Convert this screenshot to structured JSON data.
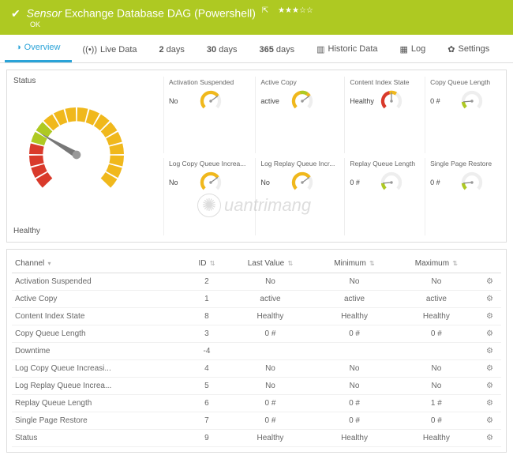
{
  "header": {
    "prefix": "Sensor",
    "title": "Exchange Database DAG (Powershell)",
    "popout_icon": "⇱",
    "stars": "★★★☆☆",
    "status": "OK",
    "bg_color": "#aec922"
  },
  "tabs": [
    {
      "icon": "◑",
      "label": "Overview",
      "active": true
    },
    {
      "icon": "((•))",
      "label": "Live Data"
    },
    {
      "icon": "",
      "label": "2 days",
      "bold_num": "2"
    },
    {
      "icon": "",
      "label": "30 days",
      "bold_num": "30"
    },
    {
      "icon": "",
      "label": "365 days",
      "bold_num": "365"
    },
    {
      "icon": "▥",
      "label": "Historic Data"
    },
    {
      "icon": "▦",
      "label": "Log"
    },
    {
      "icon": "✿",
      "label": "Settings"
    }
  ],
  "status_panel": {
    "title": "Status",
    "bottom": "Healthy",
    "main_gauge": {
      "segments_colors": [
        "#d93a2b",
        "#d93a2b",
        "#d93a2b",
        "#d93a2b",
        "#aec922",
        "#aec922",
        "#f0b81c",
        "#f0b81c",
        "#f0b81c",
        "#f0b81c",
        "#f0b81c",
        "#f0b81c",
        "#f0b81c",
        "#f0b81c",
        "#f0b81c",
        "#f0b81c",
        "#f0b81c",
        "#f0b81c"
      ],
      "needle_value": 0.28,
      "needle_color": "#777"
    },
    "mini": [
      {
        "title": "Activation Suspended",
        "value": "No",
        "gauge_color": "#f0b81c",
        "fill": 0.7
      },
      {
        "title": "Active Copy",
        "value": "active",
        "gauge_color": "#f0b81c",
        "fill": 0.7,
        "accent": "#aec922"
      },
      {
        "title": "Content Index State",
        "value": "Healthy",
        "gauge_color": "#d93a2b",
        "fill": 0.5,
        "accent": "#f0b81c"
      },
      {
        "title": "Copy Queue Length",
        "value": "0 #",
        "gauge_color": "#aec922",
        "fill": 0.15
      },
      {
        "title": "Log Copy Queue Increa...",
        "value": "No",
        "gauge_color": "#f0b81c",
        "fill": 0.7
      },
      {
        "title": "Log Replay Queue Incr...",
        "value": "No",
        "gauge_color": "#f0b81c",
        "fill": 0.7
      },
      {
        "title": "Replay Queue Length",
        "value": "0 #",
        "gauge_color": "#aec922",
        "fill": 0.15
      },
      {
        "title": "Single Page Restore",
        "value": "0 #",
        "gauge_color": "#aec922",
        "fill": 0.15
      }
    ]
  },
  "table": {
    "columns": [
      "Channel",
      "ID",
      "Last Value",
      "Minimum",
      "Maximum",
      ""
    ],
    "rows": [
      [
        "Activation Suspended",
        "2",
        "No",
        "No",
        "No"
      ],
      [
        "Active Copy",
        "1",
        "active",
        "active",
        "active"
      ],
      [
        "Content Index State",
        "8",
        "Healthy",
        "Healthy",
        "Healthy"
      ],
      [
        "Copy Queue Length",
        "3",
        "0 #",
        "0 #",
        "0 #"
      ],
      [
        "Downtime",
        "-4",
        "",
        "",
        ""
      ],
      [
        "Log Copy Queue Increasi...",
        "4",
        "No",
        "No",
        "No"
      ],
      [
        "Log Replay Queue Increa...",
        "5",
        "No",
        "No",
        "No"
      ],
      [
        "Replay Queue Length",
        "6",
        "0 #",
        "0 #",
        "1 #"
      ],
      [
        "Single Page Restore",
        "7",
        "0 #",
        "0 #",
        "0 #"
      ],
      [
        "Status",
        "9",
        "Healthy",
        "Healthy",
        "Healthy"
      ]
    ]
  },
  "watermark": "uantrimang"
}
